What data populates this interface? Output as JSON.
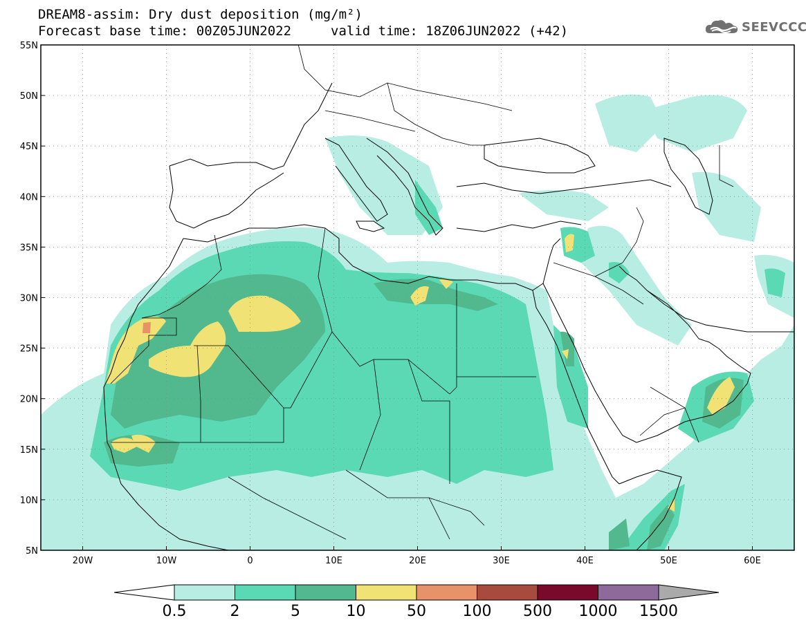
{
  "title": {
    "line1": "DREAM8-assim: Dry dust deposition (mg/m²)",
    "line2": "Forecast base time: 00Z05JUN2022",
    "valid": "valid time: 18Z06JUN2022 (+42)"
  },
  "logo": {
    "text": "SEEVCCC",
    "icon": "cloud-logo-icon",
    "color": "#707070"
  },
  "map": {
    "lon_range": [
      -25,
      65
    ],
    "lat_range": [
      5,
      55
    ],
    "lat_labels": [
      "55N",
      "50N",
      "45N",
      "40N",
      "35N",
      "30N",
      "25N",
      "20N",
      "15N",
      "10N",
      "5N"
    ],
    "lat_values": [
      55,
      50,
      45,
      40,
      35,
      30,
      25,
      20,
      15,
      10,
      5
    ],
    "lon_labels": [
      "20W",
      "10W",
      "0",
      "10E",
      "20E",
      "30E",
      "40E",
      "50E",
      "60E"
    ],
    "lon_values": [
      -20,
      -10,
      0,
      10,
      20,
      30,
      40,
      50,
      60
    ],
    "grid": "dotted"
  },
  "colorbar": {
    "colors": [
      "#b8ede3",
      "#5ad9b4",
      "#52b98e",
      "#f1e275",
      "#e8926a",
      "#a84a3e",
      "#7a0a2c",
      "#8e6a9c"
    ],
    "labels": [
      "0.5",
      "2",
      "5",
      "10",
      "50",
      "100",
      "500",
      "1000",
      "1500"
    ],
    "below_color": "#ffffff",
    "above_color": "#aaaaaa"
  }
}
